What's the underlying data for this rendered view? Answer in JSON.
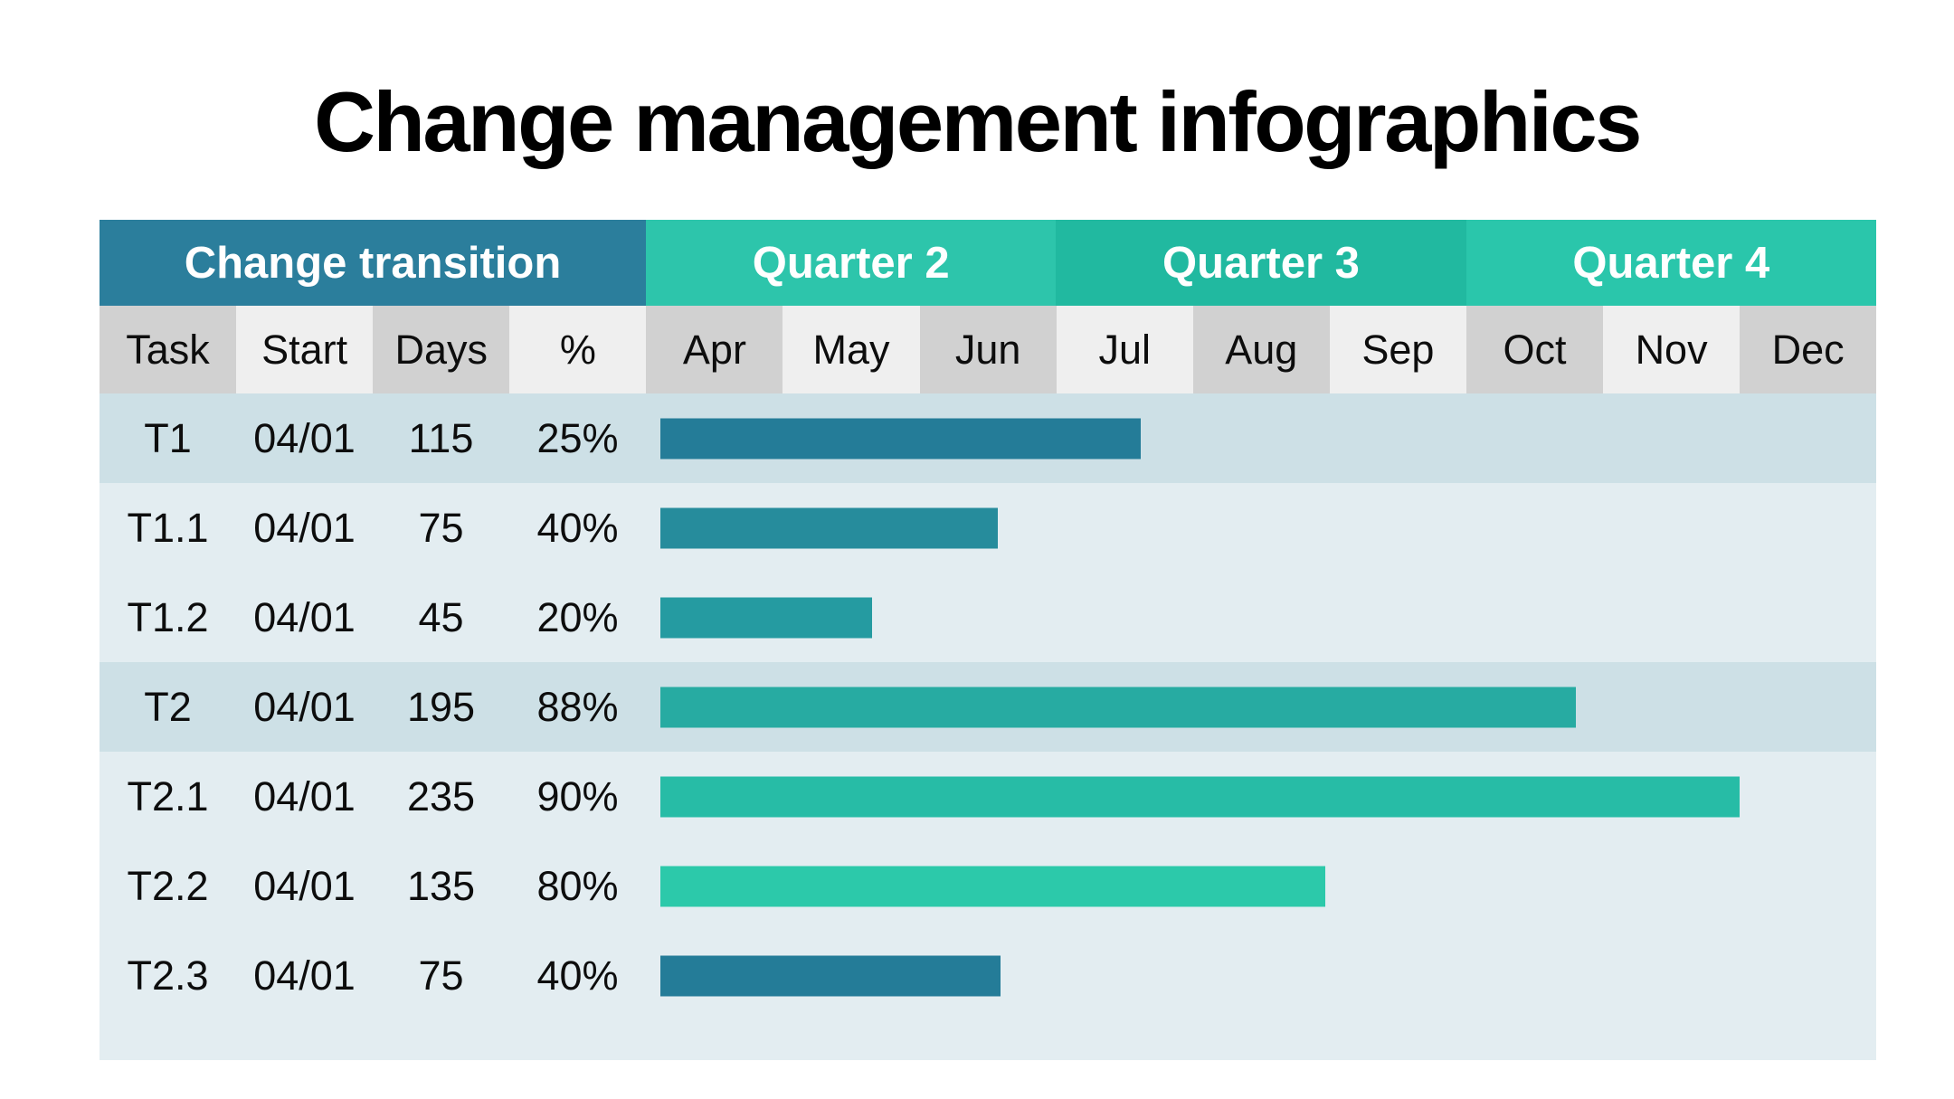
{
  "page": {
    "title": "Change management infographics",
    "background": "#ffffff"
  },
  "table": {
    "group_header": {
      "left": {
        "label": "Change transition",
        "color": "#2B7E9C",
        "text_color": "#ffffff"
      },
      "quarters": [
        {
          "label": "Quarter 2",
          "color": "#2DC5AB"
        },
        {
          "label": "Quarter 3",
          "color": "#21B9A0"
        },
        {
          "label": "Quarter 4",
          "color": "#2AC6AB"
        }
      ]
    },
    "columns": [
      "Task",
      "Start",
      "Days",
      "%"
    ],
    "months": [
      "Apr",
      "May",
      "Jun",
      "Jul",
      "Aug",
      "Sep",
      "Oct",
      "Nov",
      "Dec"
    ],
    "subheader_colors": {
      "dark": "#D1D1D1",
      "light": "#EFEFEF"
    },
    "row_colors": {
      "dark": "#CDE0E6",
      "light": "#E3EDF1"
    }
  },
  "chart_data": {
    "type": "bar",
    "subtype": "gantt",
    "title": "Change management infographics",
    "group_title": "Change transition",
    "x_axis": {
      "unit": "months",
      "tick_labels": [
        "Apr",
        "May",
        "Jun",
        "Jul",
        "Aug",
        "Sep",
        "Oct",
        "Nov",
        "Dec"
      ],
      "groups": [
        "Quarter 2",
        "Quarter 3",
        "Quarter 4"
      ]
    },
    "columns": [
      "Task",
      "Start",
      "Days",
      "%"
    ],
    "tasks": [
      {
        "task": "T1",
        "start": "04/01",
        "days": 115,
        "percent": "25%",
        "bar_color": "#247C98",
        "bar_length_pct_of_timeline": 39.0,
        "shade": "dark"
      },
      {
        "task": "T1.1",
        "start": "04/01",
        "days": 75,
        "percent": "40%",
        "bar_color": "#268C9C",
        "bar_length_pct_of_timeline": 27.4,
        "shade": "light"
      },
      {
        "task": "T1.2",
        "start": "04/01",
        "days": 45,
        "percent": "20%",
        "bar_color": "#259BA1",
        "bar_length_pct_of_timeline": 17.2,
        "shade": "light"
      },
      {
        "task": "T2",
        "start": "04/01",
        "days": 195,
        "percent": "88%",
        "bar_color": "#27ABA2",
        "bar_length_pct_of_timeline": 74.4,
        "shade": "dark"
      },
      {
        "task": "T2.1",
        "start": "04/01",
        "days": 235,
        "percent": "90%",
        "bar_color": "#27BCA6",
        "bar_length_pct_of_timeline": 87.7,
        "shade": "light"
      },
      {
        "task": "T2.2",
        "start": "04/01",
        "days": 135,
        "percent": "80%",
        "bar_color": "#2CC9AA",
        "bar_length_pct_of_timeline": 54.0,
        "shade": "light"
      },
      {
        "task": "T2.3",
        "start": "04/01",
        "days": 75,
        "percent": "40%",
        "bar_color": "#247C98",
        "bar_length_pct_of_timeline": 27.6,
        "shade": "light"
      }
    ],
    "timeline": {
      "start": "Apr",
      "end": "Dec",
      "bar_start_offset_pct": 1.2
    },
    "legend": "none",
    "grid": "off"
  }
}
